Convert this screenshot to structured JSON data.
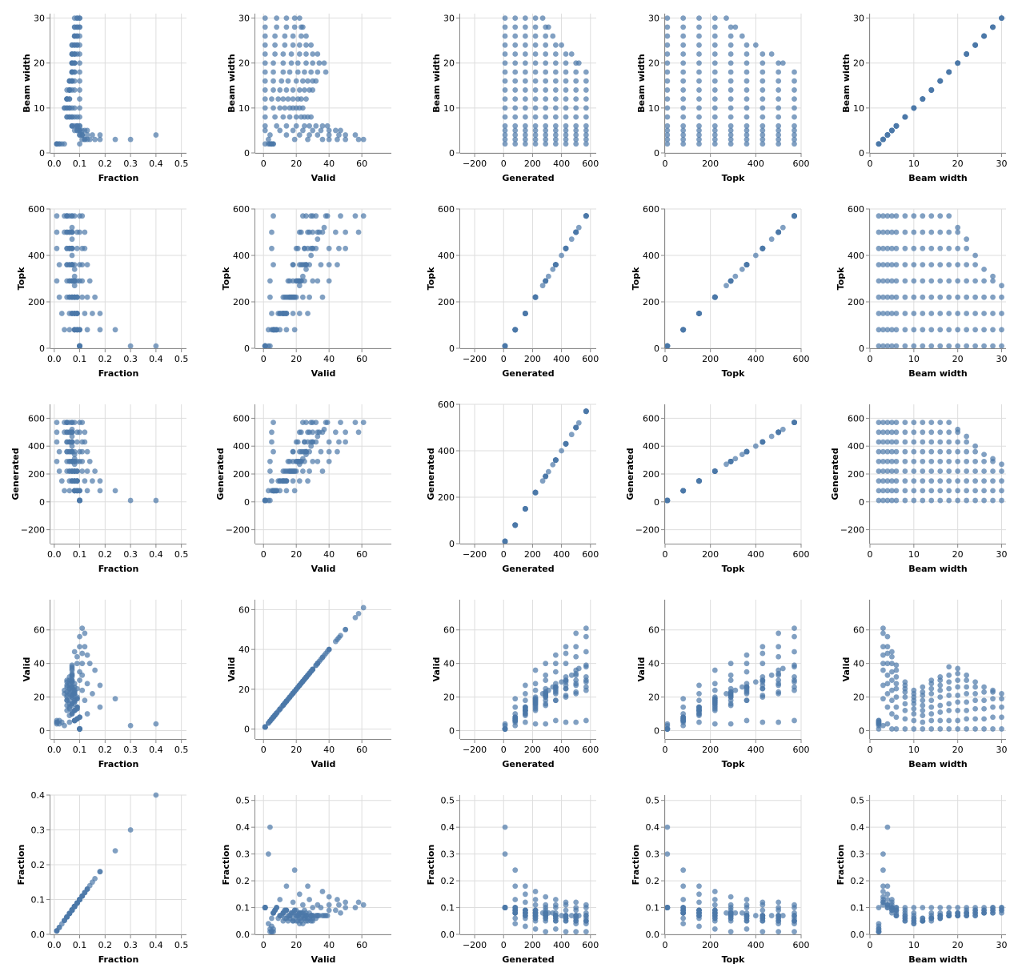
{
  "chart_data": {
    "type": "scatter",
    "layout": "scatter-matrix",
    "color": "#4c78a8",
    "grid": true,
    "rows": [
      "Beam width",
      "Topk",
      "Generated",
      "Valid",
      "Fraction"
    ],
    "columns": [
      "Fraction",
      "Valid",
      "Generated",
      "Topk",
      "Beam width"
    ],
    "axes": {
      "Beam width": {
        "label": "Beam width",
        "domain": [
          0,
          31
        ],
        "ticks": [
          0,
          10,
          20,
          30
        ]
      },
      "Topk": {
        "label": "Topk",
        "domain": [
          0,
          600
        ],
        "ticks": [
          0,
          200,
          400,
          600
        ]
      },
      "Generated": {
        "label": "Generated",
        "x_domain": [
          -300,
          640
        ],
        "x_ticks": [
          -200,
          0,
          200,
          400,
          600
        ],
        "y_domain": [
          -300,
          700
        ],
        "y_ticks": [
          -200,
          0,
          200,
          400,
          600
        ],
        "self_y_domain": [
          0,
          600
        ],
        "self_y_ticks": [
          0,
          200,
          400,
          600
        ]
      },
      "Valid": {
        "label": "Valid",
        "x_domain": [
          -5,
          78
        ],
        "x_ticks": [
          0,
          20,
          40,
          60
        ],
        "y_domain": [
          -5,
          78
        ],
        "y_ticks": [
          0,
          20,
          40,
          60
        ],
        "self_y_domain": [
          -5,
          65
        ],
        "self_y_ticks": [
          0,
          20,
          40,
          60
        ]
      },
      "Fraction": {
        "label": "Fraction",
        "x_domain": [
          -0.015,
          0.52
        ],
        "x_ticks": [
          0.0,
          0.1,
          0.2,
          0.3,
          0.4,
          0.5
        ],
        "y_domain": [
          0,
          0.52
        ],
        "y_ticks": [
          0.0,
          0.1,
          0.2,
          0.3,
          0.4,
          0.5
        ],
        "self_y_domain": [
          0,
          0.4
        ],
        "self_y_ticks": [
          0.0,
          0.1,
          0.2,
          0.3,
          0.4
        ]
      }
    },
    "fields": [
      "Beam width",
      "Topk",
      "Generated",
      "Valid",
      "Fraction"
    ],
    "values": [
      [
        2,
        10,
        10,
        1,
        0.1
      ],
      [
        2,
        80,
        80,
        3,
        0.04
      ],
      [
        2,
        150,
        150,
        5,
        0.03
      ],
      [
        2,
        220,
        220,
        4,
        0.02
      ],
      [
        2,
        290,
        290,
        4,
        0.01
      ],
      [
        2,
        360,
        360,
        6,
        0.02
      ],
      [
        2,
        430,
        430,
        5,
        0.01
      ],
      [
        2,
        500,
        500,
        5,
        0.01
      ],
      [
        2,
        570,
        570,
        6,
        0.01
      ],
      [
        3,
        10,
        10,
        3,
        0.3
      ],
      [
        3,
        80,
        80,
        19,
        0.24
      ],
      [
        3,
        150,
        150,
        27,
        0.18
      ],
      [
        3,
        220,
        220,
        36,
        0.16
      ],
      [
        3,
        290,
        290,
        40,
        0.14
      ],
      [
        3,
        360,
        360,
        45,
        0.13
      ],
      [
        3,
        430,
        430,
        50,
        0.12
      ],
      [
        3,
        500,
        500,
        58,
        0.12
      ],
      [
        3,
        570,
        570,
        61,
        0.11
      ],
      [
        4,
        10,
        10,
        4,
        0.4
      ],
      [
        4,
        80,
        80,
        14,
        0.18
      ],
      [
        4,
        150,
        150,
        22,
        0.15
      ],
      [
        4,
        220,
        220,
        28,
        0.13
      ],
      [
        4,
        290,
        290,
        33,
        0.11
      ],
      [
        4,
        360,
        360,
        40,
        0.11
      ],
      [
        4,
        430,
        430,
        46,
        0.11
      ],
      [
        4,
        500,
        500,
        50,
        0.1
      ],
      [
        4,
        570,
        570,
        56,
        0.1
      ],
      [
        5,
        10,
        10,
        1,
        0.1
      ],
      [
        5,
        80,
        80,
        10,
        0.13
      ],
      [
        5,
        150,
        150,
        18,
        0.12
      ],
      [
        5,
        220,
        220,
        24,
        0.11
      ],
      [
        5,
        290,
        290,
        30,
        0.1
      ],
      [
        5,
        360,
        360,
        35,
        0.1
      ],
      [
        5,
        430,
        430,
        40,
        0.09
      ],
      [
        5,
        500,
        500,
        44,
        0.09
      ],
      [
        5,
        570,
        570,
        47,
        0.08
      ],
      [
        6,
        10,
        10,
        1,
        0.1
      ],
      [
        6,
        80,
        80,
        8,
        0.1
      ],
      [
        6,
        150,
        150,
        14,
        0.09
      ],
      [
        6,
        220,
        220,
        20,
        0.09
      ],
      [
        6,
        290,
        290,
        25,
        0.09
      ],
      [
        6,
        360,
        360,
        28,
        0.08
      ],
      [
        6,
        430,
        430,
        32,
        0.07
      ],
      [
        6,
        500,
        500,
        36,
        0.07
      ],
      [
        6,
        570,
        570,
        39,
        0.07
      ],
      [
        8,
        10,
        10,
        1,
        0.1
      ],
      [
        8,
        80,
        80,
        7,
        0.09
      ],
      [
        8,
        150,
        150,
        12,
        0.08
      ],
      [
        8,
        220,
        220,
        16,
        0.07
      ],
      [
        8,
        290,
        290,
        20,
        0.07
      ],
      [
        8,
        360,
        360,
        23,
        0.06
      ],
      [
        8,
        430,
        430,
        25,
        0.06
      ],
      [
        8,
        500,
        500,
        27,
        0.05
      ],
      [
        8,
        570,
        570,
        29,
        0.05
      ],
      [
        10,
        10,
        10,
        1,
        0.1
      ],
      [
        10,
        80,
        80,
        6,
        0.08
      ],
      [
        10,
        150,
        150,
        10,
        0.07
      ],
      [
        10,
        220,
        220,
        13,
        0.06
      ],
      [
        10,
        290,
        290,
        16,
        0.06
      ],
      [
        10,
        360,
        360,
        18,
        0.05
      ],
      [
        10,
        430,
        430,
        20,
        0.05
      ],
      [
        10,
        500,
        500,
        22,
        0.04
      ],
      [
        10,
        570,
        570,
        24,
        0.04
      ],
      [
        12,
        10,
        10,
        1,
        0.1
      ],
      [
        12,
        80,
        80,
        5,
        0.06
      ],
      [
        12,
        150,
        150,
        9,
        0.06
      ],
      [
        12,
        220,
        220,
        12,
        0.05
      ],
      [
        12,
        290,
        290,
        15,
        0.05
      ],
      [
        12,
        360,
        360,
        18,
        0.05
      ],
      [
        12,
        430,
        430,
        21,
        0.05
      ],
      [
        12,
        500,
        500,
        23,
        0.05
      ],
      [
        12,
        570,
        570,
        26,
        0.05
      ],
      [
        14,
        10,
        10,
        1,
        0.1
      ],
      [
        14,
        80,
        80,
        6,
        0.08
      ],
      [
        14,
        150,
        150,
        10,
        0.07
      ],
      [
        14,
        220,
        220,
        14,
        0.06
      ],
      [
        14,
        290,
        290,
        18,
        0.06
      ],
      [
        14,
        360,
        360,
        22,
        0.06
      ],
      [
        14,
        430,
        430,
        25,
        0.06
      ],
      [
        14,
        500,
        500,
        28,
        0.06
      ],
      [
        14,
        570,
        570,
        30,
        0.05
      ],
      [
        16,
        10,
        10,
        1,
        0.1
      ],
      [
        16,
        80,
        80,
        6,
        0.08
      ],
      [
        16,
        150,
        150,
        11,
        0.07
      ],
      [
        16,
        220,
        220,
        15,
        0.07
      ],
      [
        16,
        290,
        290,
        20,
        0.07
      ],
      [
        16,
        360,
        360,
        24,
        0.07
      ],
      [
        16,
        430,
        430,
        27,
        0.06
      ],
      [
        16,
        500,
        500,
        30,
        0.06
      ],
      [
        16,
        570,
        570,
        32,
        0.06
      ],
      [
        18,
        10,
        10,
        1,
        0.1
      ],
      [
        18,
        80,
        80,
        6,
        0.08
      ],
      [
        18,
        150,
        150,
        12,
        0.08
      ],
      [
        18,
        220,
        220,
        16,
        0.07
      ],
      [
        18,
        290,
        290,
        21,
        0.07
      ],
      [
        18,
        360,
        360,
        25,
        0.07
      ],
      [
        18,
        430,
        430,
        29,
        0.07
      ],
      [
        18,
        500,
        500,
        33,
        0.07
      ],
      [
        18,
        570,
        570,
        38,
        0.07
      ],
      [
        20,
        10,
        10,
        1,
        0.1
      ],
      [
        20,
        80,
        80,
        6,
        0.08
      ],
      [
        20,
        150,
        150,
        12,
        0.08
      ],
      [
        20,
        220,
        220,
        17,
        0.08
      ],
      [
        20,
        290,
        290,
        21,
        0.07
      ],
      [
        20,
        360,
        360,
        26,
        0.07
      ],
      [
        20,
        430,
        430,
        30,
        0.07
      ],
      [
        20,
        500,
        500,
        34,
        0.07
      ],
      [
        20,
        520,
        520,
        37,
        0.07
      ],
      [
        22,
        10,
        10,
        1,
        0.1
      ],
      [
        22,
        80,
        80,
        7,
        0.09
      ],
      [
        22,
        150,
        150,
        12,
        0.08
      ],
      [
        22,
        220,
        220,
        17,
        0.08
      ],
      [
        22,
        290,
        290,
        22,
        0.08
      ],
      [
        22,
        360,
        360,
        26,
        0.07
      ],
      [
        22,
        430,
        430,
        30,
        0.07
      ],
      [
        22,
        470,
        470,
        33,
        0.07
      ],
      [
        24,
        10,
        10,
        1,
        0.1
      ],
      [
        24,
        80,
        80,
        7,
        0.09
      ],
      [
        24,
        150,
        150,
        13,
        0.09
      ],
      [
        24,
        220,
        220,
        18,
        0.08
      ],
      [
        24,
        290,
        290,
        22,
        0.08
      ],
      [
        24,
        360,
        360,
        26,
        0.07
      ],
      [
        24,
        400,
        400,
        29,
        0.07
      ],
      [
        26,
        10,
        10,
        1,
        0.1
      ],
      [
        26,
        80,
        80,
        7,
        0.09
      ],
      [
        26,
        150,
        150,
        13,
        0.09
      ],
      [
        26,
        220,
        220,
        18,
        0.08
      ],
      [
        26,
        290,
        290,
        23,
        0.08
      ],
      [
        26,
        340,
        340,
        26,
        0.08
      ],
      [
        28,
        10,
        10,
        1,
        0.1
      ],
      [
        28,
        80,
        80,
        8,
        0.1
      ],
      [
        28,
        150,
        150,
        14,
        0.09
      ],
      [
        28,
        220,
        220,
        19,
        0.09
      ],
      [
        28,
        290,
        290,
        23,
        0.08
      ],
      [
        28,
        310,
        310,
        24,
        0.08
      ],
      [
        30,
        10,
        10,
        1,
        0.1
      ],
      [
        30,
        80,
        80,
        8,
        0.1
      ],
      [
        30,
        150,
        150,
        14,
        0.09
      ],
      [
        30,
        220,
        220,
        19,
        0.09
      ],
      [
        30,
        270,
        270,
        22,
        0.08
      ]
    ]
  }
}
